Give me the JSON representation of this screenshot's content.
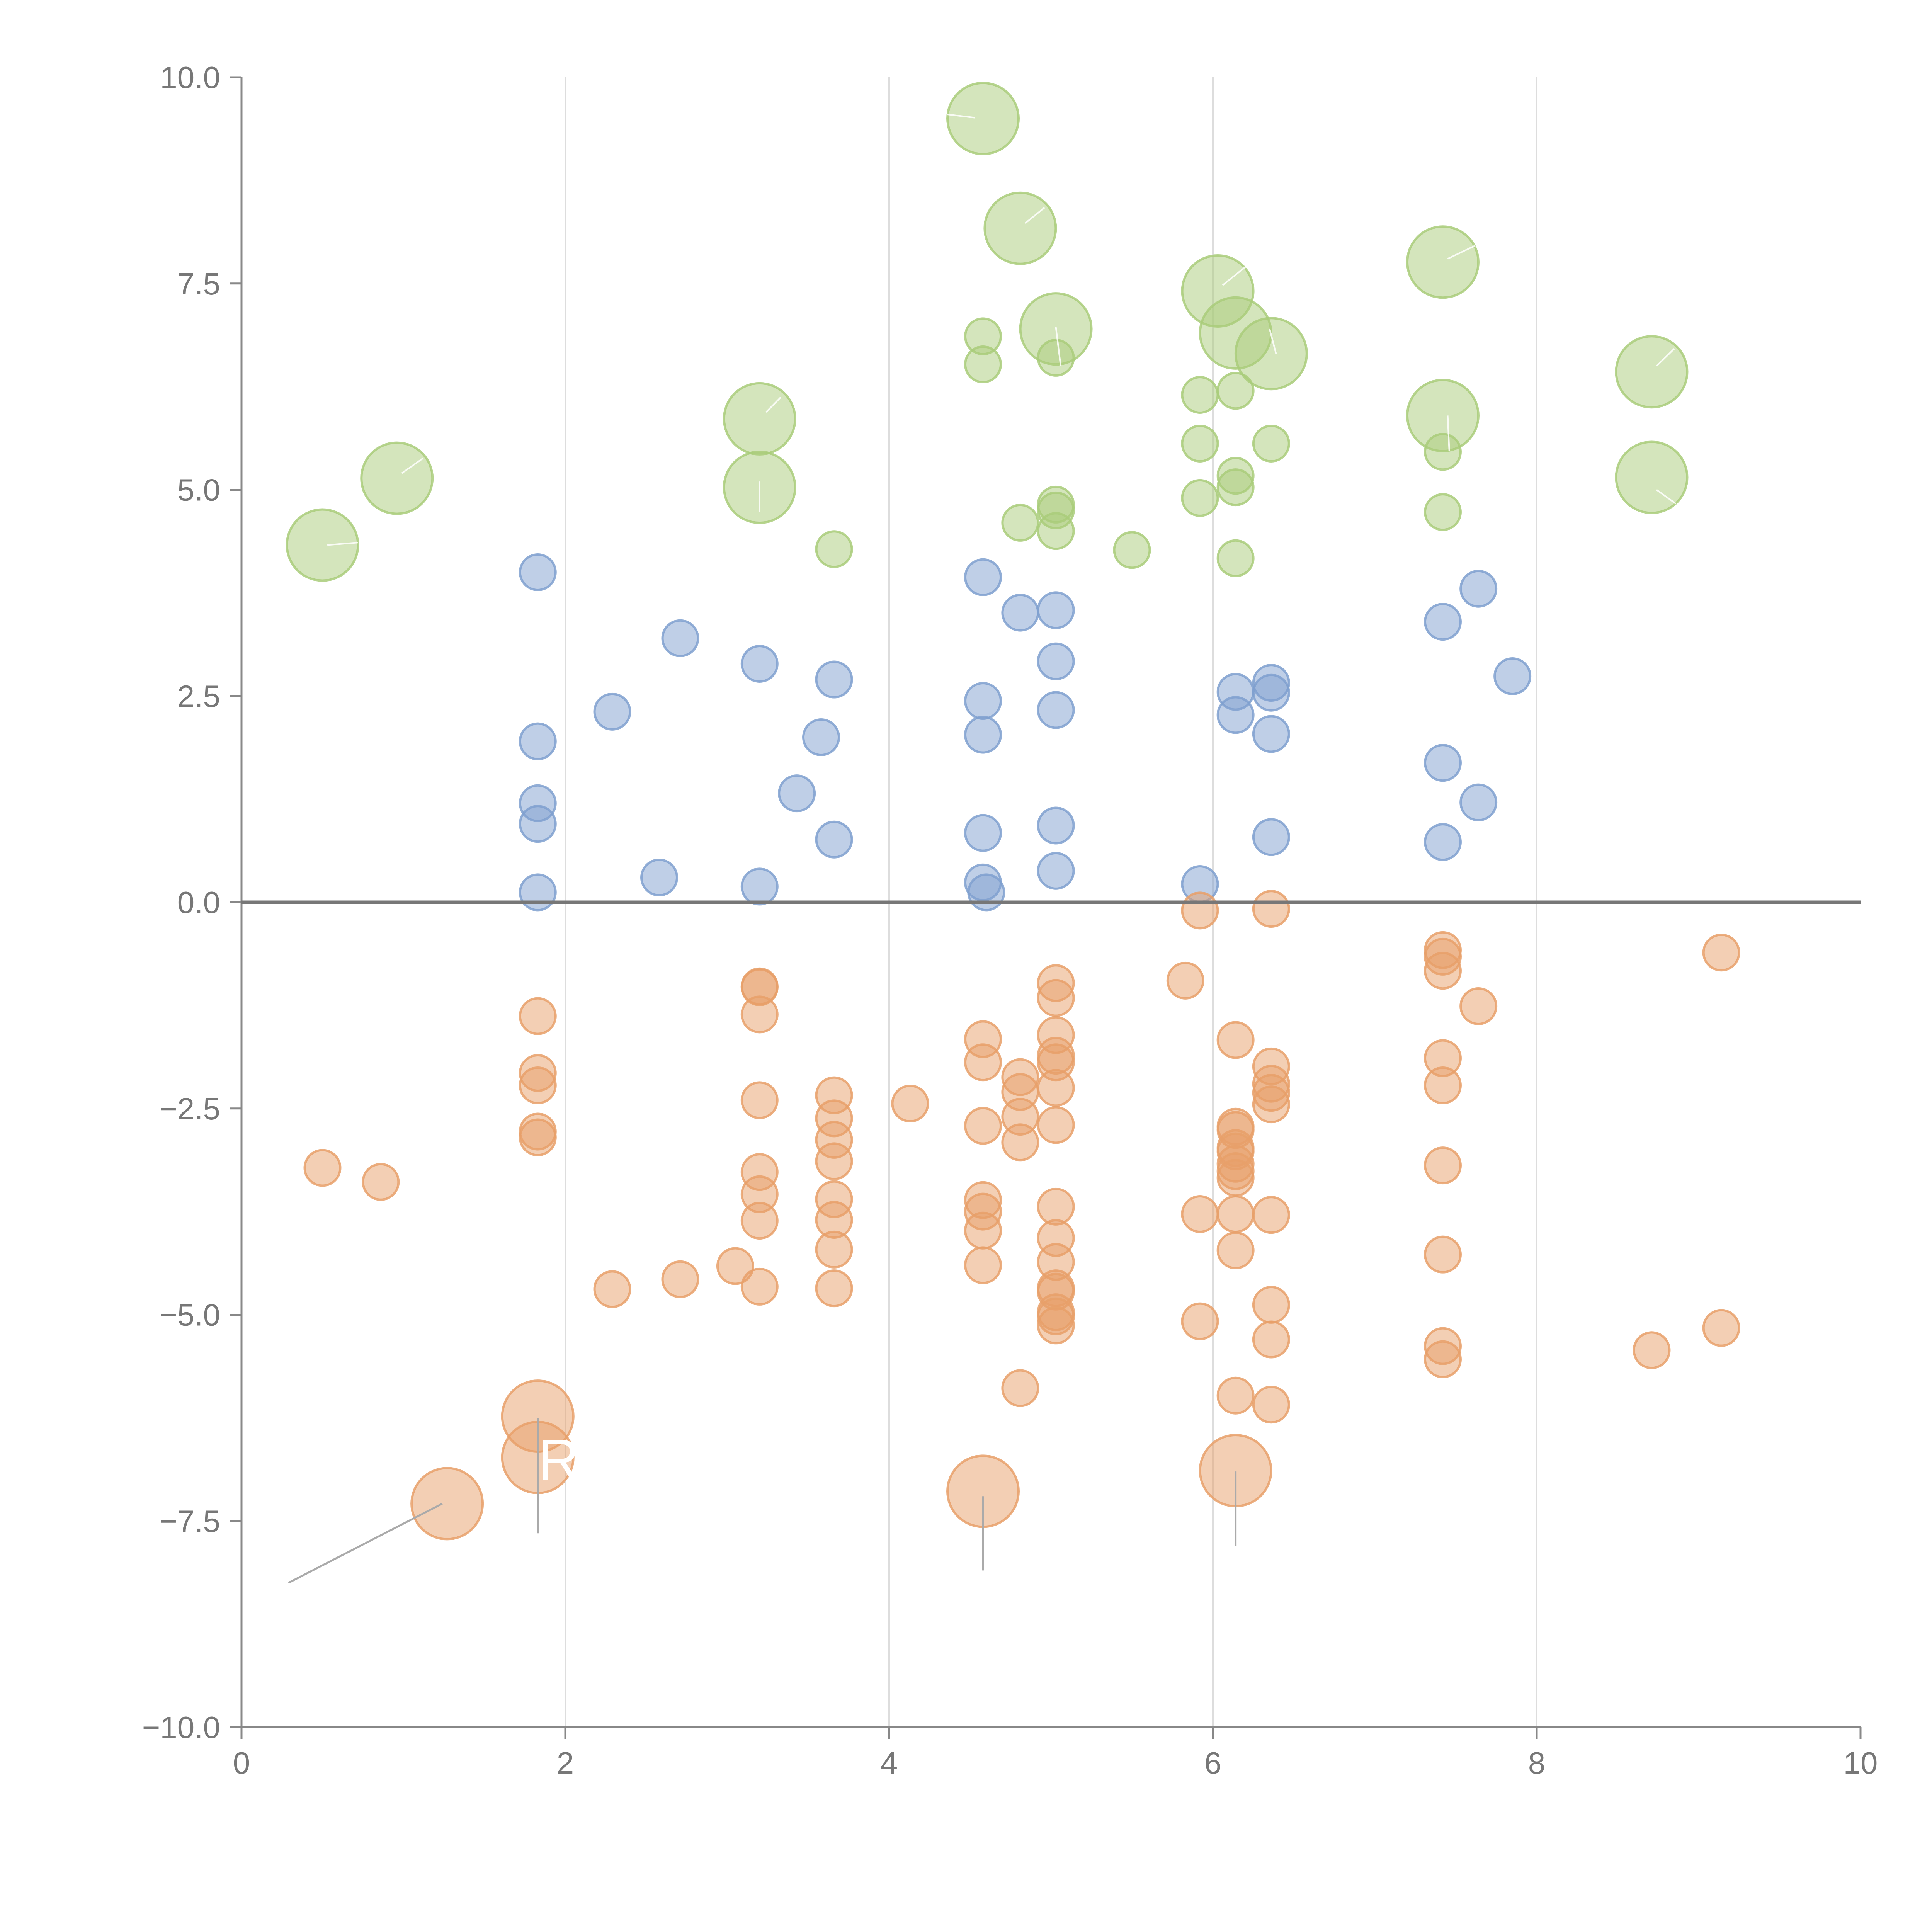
{
  "chart_data": {
    "type": "scatter",
    "title": "",
    "xlabel": "",
    "ylabel": "",
    "xlim": [
      0,
      10
    ],
    "ylim": [
      -10,
      10
    ],
    "x_ticks": [
      0,
      2,
      4,
      6,
      8,
      10
    ],
    "y_ticks": [
      -10,
      -7.5,
      -5,
      -2.5,
      0,
      2.5,
      5,
      7.5,
      10
    ],
    "x_tick_labels": [
      "0",
      "2",
      "4",
      "6",
      "8",
      "10"
    ],
    "y_tick_labels": [
      "−10.0",
      "−7.5",
      "−5.0",
      "−2.5",
      "0.0",
      "2.5",
      "5.0",
      "7.5",
      "10.0"
    ],
    "grid": "vertical",
    "zero_line": true,
    "colors": {
      "green": "#a9cc7a",
      "blue": "#7fa0cf",
      "orange": "#e8a06a"
    },
    "series": [
      {
        "name": "green",
        "color": "#a9cc7a",
        "points": [
          {
            "x": 0.5,
            "y": 4.33,
            "size": "large"
          },
          {
            "x": 0.96,
            "y": 5.14,
            "size": "large"
          },
          {
            "x": 3.2,
            "y": 5.86,
            "size": "large"
          },
          {
            "x": 3.2,
            "y": 5.03,
            "size": "large"
          },
          {
            "x": 3.66,
            "y": 4.28,
            "size": "small"
          },
          {
            "x": 4.58,
            "y": 9.5,
            "size": "large"
          },
          {
            "x": 4.58,
            "y": 6.86,
            "size": "small"
          },
          {
            "x": 4.58,
            "y": 6.52,
            "size": "small"
          },
          {
            "x": 4.81,
            "y": 8.17,
            "size": "large"
          },
          {
            "x": 5.03,
            "y": 6.95,
            "size": "large"
          },
          {
            "x": 5.03,
            "y": 6.6,
            "size": "small"
          },
          {
            "x": 5.03,
            "y": 4.82,
            "size": "small"
          },
          {
            "x": 5.03,
            "y": 4.75,
            "size": "small"
          },
          {
            "x": 5.03,
            "y": 4.5,
            "size": "small"
          },
          {
            "x": 4.81,
            "y": 4.6,
            "size": "small"
          },
          {
            "x": 5.5,
            "y": 4.27,
            "size": "small"
          },
          {
            "x": 6.03,
            "y": 7.41,
            "size": "large"
          },
          {
            "x": 6.14,
            "y": 6.9,
            "size": "large"
          },
          {
            "x": 6.36,
            "y": 6.65,
            "size": "large"
          },
          {
            "x": 5.92,
            "y": 6.15,
            "size": "small"
          },
          {
            "x": 6.14,
            "y": 6.2,
            "size": "small"
          },
          {
            "x": 5.92,
            "y": 5.56,
            "size": "small"
          },
          {
            "x": 6.36,
            "y": 5.56,
            "size": "small"
          },
          {
            "x": 6.14,
            "y": 5.17,
            "size": "small"
          },
          {
            "x": 6.14,
            "y": 5.03,
            "size": "small"
          },
          {
            "x": 5.92,
            "y": 4.9,
            "size": "small"
          },
          {
            "x": 6.14,
            "y": 4.17,
            "size": "small"
          },
          {
            "x": 7.42,
            "y": 7.76,
            "size": "large"
          },
          {
            "x": 7.42,
            "y": 5.9,
            "size": "large"
          },
          {
            "x": 7.42,
            "y": 5.46,
            "size": "small"
          },
          {
            "x": 7.42,
            "y": 4.73,
            "size": "small"
          },
          {
            "x": 8.71,
            "y": 6.43,
            "size": "large"
          },
          {
            "x": 8.71,
            "y": 5.15,
            "size": "large"
          }
        ]
      },
      {
        "name": "blue",
        "color": "#7fa0cf",
        "points": [
          {
            "x": 1.83,
            "y": 4.0
          },
          {
            "x": 1.83,
            "y": 1.95
          },
          {
            "x": 1.83,
            "y": 1.2
          },
          {
            "x": 1.83,
            "y": 0.95
          },
          {
            "x": 1.83,
            "y": 0.12
          },
          {
            "x": 2.29,
            "y": 2.31
          },
          {
            "x": 2.71,
            "y": 3.2
          },
          {
            "x": 2.58,
            "y": 0.3
          },
          {
            "x": 3.2,
            "y": 2.89
          },
          {
            "x": 3.2,
            "y": 0.19
          },
          {
            "x": 3.43,
            "y": 1.32
          },
          {
            "x": 3.58,
            "y": 2.0
          },
          {
            "x": 3.66,
            "y": 2.7
          },
          {
            "x": 3.66,
            "y": 0.76
          },
          {
            "x": 4.58,
            "y": 3.94
          },
          {
            "x": 4.58,
            "y": 2.44
          },
          {
            "x": 4.58,
            "y": 2.03
          },
          {
            "x": 4.58,
            "y": 0.84
          },
          {
            "x": 4.58,
            "y": 0.24
          },
          {
            "x": 4.6,
            "y": 0.12
          },
          {
            "x": 4.81,
            "y": 3.51
          },
          {
            "x": 5.03,
            "y": 3.54
          },
          {
            "x": 5.03,
            "y": 2.92
          },
          {
            "x": 5.03,
            "y": 2.33
          },
          {
            "x": 5.03,
            "y": 0.93
          },
          {
            "x": 5.03,
            "y": 0.38
          },
          {
            "x": 5.92,
            "y": 0.22
          },
          {
            "x": 6.14,
            "y": 2.55
          },
          {
            "x": 6.14,
            "y": 2.27
          },
          {
            "x": 6.36,
            "y": 2.66
          },
          {
            "x": 6.36,
            "y": 2.54
          },
          {
            "x": 6.36,
            "y": 2.04
          },
          {
            "x": 6.36,
            "y": 0.79
          },
          {
            "x": 7.42,
            "y": 3.4
          },
          {
            "x": 7.42,
            "y": 1.69
          },
          {
            "x": 7.42,
            "y": 0.73
          },
          {
            "x": 7.64,
            "y": 3.8
          },
          {
            "x": 7.64,
            "y": 1.21
          },
          {
            "x": 7.85,
            "y": 2.74
          }
        ]
      },
      {
        "name": "orange",
        "color": "#e8a06a",
        "points": [
          {
            "x": 0.5,
            "y": -3.22,
            "size": "small"
          },
          {
            "x": 0.86,
            "y": -3.39,
            "size": "small"
          },
          {
            "x": 1.27,
            "y": -7.29,
            "size": "large"
          },
          {
            "x": 1.83,
            "y": -6.23,
            "size": "large"
          },
          {
            "x": 1.83,
            "y": -6.73,
            "size": "large"
          },
          {
            "x": 1.83,
            "y": -1.38,
            "size": "small"
          },
          {
            "x": 1.83,
            "y": -2.07,
            "size": "small"
          },
          {
            "x": 1.83,
            "y": -2.22,
            "size": "small"
          },
          {
            "x": 1.83,
            "y": -2.78,
            "size": "small"
          },
          {
            "x": 1.83,
            "y": -2.85,
            "size": "small"
          },
          {
            "x": 2.29,
            "y": -4.69,
            "size": "small"
          },
          {
            "x": 2.71,
            "y": -4.57,
            "size": "small"
          },
          {
            "x": 3.05,
            "y": -4.41,
            "size": "small"
          },
          {
            "x": 3.2,
            "y": -1.02,
            "size": "small"
          },
          {
            "x": 3.2,
            "y": -1.03,
            "size": "small"
          },
          {
            "x": 3.2,
            "y": -1.36,
            "size": "small"
          },
          {
            "x": 3.2,
            "y": -2.4,
            "size": "small"
          },
          {
            "x": 3.2,
            "y": -3.27,
            "size": "small"
          },
          {
            "x": 3.2,
            "y": -3.54,
            "size": "small"
          },
          {
            "x": 3.2,
            "y": -3.86,
            "size": "small"
          },
          {
            "x": 3.2,
            "y": -4.66,
            "size": "small"
          },
          {
            "x": 3.66,
            "y": -2.34,
            "size": "small"
          },
          {
            "x": 3.66,
            "y": -2.62,
            "size": "small"
          },
          {
            "x": 3.66,
            "y": -2.88,
            "size": "small"
          },
          {
            "x": 3.66,
            "y": -3.14,
            "size": "small"
          },
          {
            "x": 3.66,
            "y": -3.6,
            "size": "small"
          },
          {
            "x": 3.66,
            "y": -3.85,
            "size": "small"
          },
          {
            "x": 3.66,
            "y": -4.21,
            "size": "small"
          },
          {
            "x": 3.66,
            "y": -4.68,
            "size": "small"
          },
          {
            "x": 4.13,
            "y": -2.44,
            "size": "small"
          },
          {
            "x": 4.58,
            "y": -1.66,
            "size": "small"
          },
          {
            "x": 4.58,
            "y": -1.94,
            "size": "small"
          },
          {
            "x": 4.58,
            "y": -2.71,
            "size": "small"
          },
          {
            "x": 4.58,
            "y": -3.61,
            "size": "small"
          },
          {
            "x": 4.58,
            "y": -3.75,
            "size": "small"
          },
          {
            "x": 4.58,
            "y": -3.98,
            "size": "small"
          },
          {
            "x": 4.58,
            "y": -4.4,
            "size": "small"
          },
          {
            "x": 4.58,
            "y": -7.14,
            "size": "large"
          },
          {
            "x": 4.81,
            "y": -2.12,
            "size": "small"
          },
          {
            "x": 4.81,
            "y": -2.3,
            "size": "small"
          },
          {
            "x": 4.81,
            "y": -2.6,
            "size": "small"
          },
          {
            "x": 4.81,
            "y": -2.91,
            "size": "small"
          },
          {
            "x": 4.81,
            "y": -5.89,
            "size": "small"
          },
          {
            "x": 5.03,
            "y": -0.98,
            "size": "small"
          },
          {
            "x": 5.03,
            "y": -1.16,
            "size": "small"
          },
          {
            "x": 5.03,
            "y": -1.61,
            "size": "small"
          },
          {
            "x": 5.03,
            "y": -1.86,
            "size": "small"
          },
          {
            "x": 5.03,
            "y": -1.94,
            "size": "small"
          },
          {
            "x": 5.03,
            "y": -2.25,
            "size": "small"
          },
          {
            "x": 5.03,
            "y": -2.7,
            "size": "small"
          },
          {
            "x": 5.03,
            "y": -3.69,
            "size": "small"
          },
          {
            "x": 5.03,
            "y": -4.07,
            "size": "small"
          },
          {
            "x": 5.03,
            "y": -4.36,
            "size": "small"
          },
          {
            "x": 5.03,
            "y": -4.68,
            "size": "small"
          },
          {
            "x": 5.03,
            "y": -4.72,
            "size": "small"
          },
          {
            "x": 5.03,
            "y": -4.97,
            "size": "small"
          },
          {
            "x": 5.03,
            "y": -5.02,
            "size": "small"
          },
          {
            "x": 5.03,
            "y": -5.13,
            "size": "small"
          },
          {
            "x": 5.83,
            "y": -0.95,
            "size": "small"
          },
          {
            "x": 5.92,
            "y": -0.1,
            "size": "small"
          },
          {
            "x": 5.92,
            "y": -3.78,
            "size": "small"
          },
          {
            "x": 5.92,
            "y": -5.08,
            "size": "small"
          },
          {
            "x": 6.14,
            "y": -1.67,
            "size": "small"
          },
          {
            "x": 6.14,
            "y": -2.72,
            "size": "small"
          },
          {
            "x": 6.14,
            "y": -2.76,
            "size": "small"
          },
          {
            "x": 6.14,
            "y": -2.98,
            "size": "small"
          },
          {
            "x": 6.14,
            "y": -3.02,
            "size": "small"
          },
          {
            "x": 6.14,
            "y": -3.17,
            "size": "small"
          },
          {
            "x": 6.14,
            "y": -3.26,
            "size": "small"
          },
          {
            "x": 6.14,
            "y": -3.34,
            "size": "small"
          },
          {
            "x": 6.14,
            "y": -3.78,
            "size": "small"
          },
          {
            "x": 6.14,
            "y": -4.22,
            "size": "small"
          },
          {
            "x": 6.14,
            "y": -5.98,
            "size": "small"
          },
          {
            "x": 6.14,
            "y": -6.89,
            "size": "large"
          },
          {
            "x": 6.36,
            "y": -0.08,
            "size": "small"
          },
          {
            "x": 6.36,
            "y": -1.99,
            "size": "small"
          },
          {
            "x": 6.36,
            "y": -2.2,
            "size": "small"
          },
          {
            "x": 6.36,
            "y": -2.31,
            "size": "small"
          },
          {
            "x": 6.36,
            "y": -2.45,
            "size": "small"
          },
          {
            "x": 6.36,
            "y": -3.79,
            "size": "small"
          },
          {
            "x": 6.36,
            "y": -4.88,
            "size": "small"
          },
          {
            "x": 6.36,
            "y": -5.3,
            "size": "small"
          },
          {
            "x": 6.36,
            "y": -6.09,
            "size": "small"
          },
          {
            "x": 7.42,
            "y": -0.58,
            "size": "small"
          },
          {
            "x": 7.42,
            "y": -0.66,
            "size": "small"
          },
          {
            "x": 7.42,
            "y": -0.83,
            "size": "small"
          },
          {
            "x": 7.42,
            "y": -1.89,
            "size": "small"
          },
          {
            "x": 7.42,
            "y": -2.22,
            "size": "small"
          },
          {
            "x": 7.42,
            "y": -3.19,
            "size": "small"
          },
          {
            "x": 7.42,
            "y": -4.27,
            "size": "small"
          },
          {
            "x": 7.42,
            "y": -5.38,
            "size": "small"
          },
          {
            "x": 7.42,
            "y": -5.54,
            "size": "small"
          },
          {
            "x": 7.64,
            "y": -1.26,
            "size": "small"
          },
          {
            "x": 8.71,
            "y": -5.43,
            "size": "small"
          },
          {
            "x": 9.14,
            "y": -0.61,
            "size": "small"
          },
          {
            "x": 9.14,
            "y": -5.16,
            "size": "small"
          }
        ]
      }
    ],
    "leaders": [
      {
        "x1": 0.29,
        "y1": -8.25,
        "x2": 1.24,
        "y2": -7.29,
        "color": "#aaaaaa"
      },
      {
        "x1": 1.83,
        "y1": -7.65,
        "x2": 1.83,
        "y2": -6.25,
        "color": "#aaaaaa"
      },
      {
        "x1": 4.58,
        "y1": -8.1,
        "x2": 4.58,
        "y2": -7.2,
        "color": "#aaaaaa"
      },
      {
        "x1": 6.14,
        "y1": -7.8,
        "x2": 6.14,
        "y2": -6.9,
        "color": "#aaaaaa"
      },
      {
        "x1": 0.53,
        "y1": 4.33,
        "x2": 0.72,
        "y2": 4.36,
        "color": "#ffffff"
      },
      {
        "x1": 0.99,
        "y1": 5.2,
        "x2": 1.12,
        "y2": 5.38,
        "color": "#ffffff"
      },
      {
        "x1": 3.24,
        "y1": 5.94,
        "x2": 3.33,
        "y2": 6.12,
        "color": "#ffffff"
      },
      {
        "x1": 3.2,
        "y1": 5.1,
        "x2": 3.2,
        "y2": 4.73,
        "color": "#ffffff"
      },
      {
        "x1": 4.53,
        "y1": 9.51,
        "x2": 4.36,
        "y2": 9.55,
        "color": "#ffffff"
      },
      {
        "x1": 4.84,
        "y1": 8.23,
        "x2": 4.96,
        "y2": 8.42,
        "color": "#ffffff"
      },
      {
        "x1": 5.06,
        "y1": 6.5,
        "x2": 5.03,
        "y2": 6.97,
        "color": "#ffffff"
      },
      {
        "x1": 6.06,
        "y1": 7.48,
        "x2": 6.2,
        "y2": 7.7,
        "color": "#ffffff"
      },
      {
        "x1": 6.39,
        "y1": 6.65,
        "x2": 6.35,
        "y2": 6.95,
        "color": "#ffffff"
      },
      {
        "x1": 7.45,
        "y1": 7.8,
        "x2": 7.62,
        "y2": 7.96,
        "color": "#ffffff"
      },
      {
        "x1": 7.45,
        "y1": 5.9,
        "x2": 7.46,
        "y2": 5.47,
        "color": "#ffffff"
      },
      {
        "x1": 8.74,
        "y1": 6.5,
        "x2": 8.85,
        "y2": 6.71,
        "color": "#ffffff"
      },
      {
        "x1": 8.74,
        "y1": 5.0,
        "x2": 8.86,
        "y2": 4.83,
        "color": "#ffffff"
      }
    ],
    "annotations": [
      {
        "text": "R",
        "x": 1.83,
        "y": -7.0
      }
    ]
  }
}
